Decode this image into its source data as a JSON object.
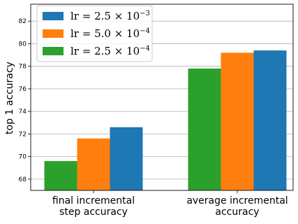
{
  "chart_data": {
    "type": "bar",
    "ylabel": "top 1 accuracy",
    "xlabel": "",
    "ylim": [
      67.0,
      83.5
    ],
    "yticks": [
      68,
      70,
      72,
      74,
      76,
      78,
      80,
      82
    ],
    "grid": "horizontal",
    "legend_position": "top-left",
    "categories": [
      {
        "lines": [
          "final incremental",
          "step accuracy"
        ]
      },
      {
        "lines": [
          "average incremental",
          "accuracy"
        ]
      }
    ],
    "series": [
      {
        "name": "lr = 2.5 × 10⁻⁴",
        "color": "#2ca02c",
        "values": [
          69.6,
          77.8
        ]
      },
      {
        "name": "lr = 5.0 × 10⁻⁴",
        "color": "#ff7f0e",
        "values": [
          71.6,
          79.2
        ]
      },
      {
        "name": "lr = 2.5 × 10⁻³",
        "color": "#1f77b4",
        "values": [
          72.6,
          79.4
        ]
      }
    ],
    "legend": [
      {
        "pre": "lr = 2.5 × 10",
        "exp": "−3",
        "color": "#1f77b4"
      },
      {
        "pre": "lr = 5.0 × 10",
        "exp": "−4",
        "color": "#ff7f0e"
      },
      {
        "pre": "lr = 2.5 × 10",
        "exp": "−4",
        "color": "#2ca02c"
      }
    ]
  }
}
